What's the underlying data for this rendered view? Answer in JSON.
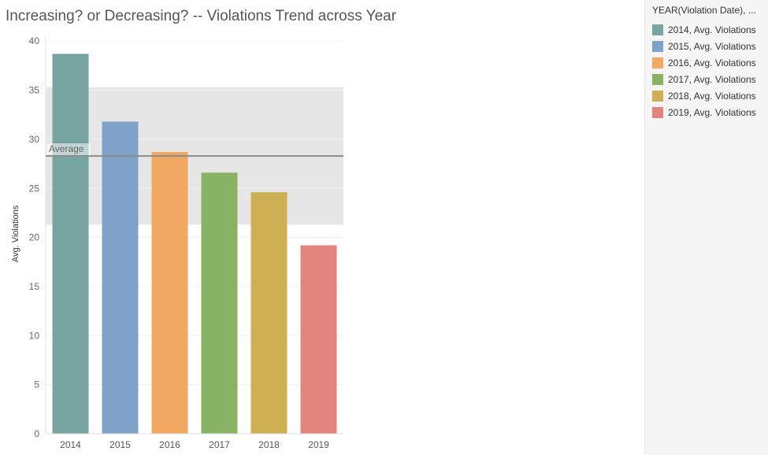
{
  "chart_data": {
    "type": "bar",
    "title": "Increasing? or Decreasing? -- Violations Trend across Year",
    "xlabel": "",
    "ylabel": "Avg. Violations",
    "categories": [
      "2014",
      "2015",
      "2016",
      "2017",
      "2018",
      "2019"
    ],
    "values": [
      38.7,
      31.8,
      28.7,
      26.6,
      24.6,
      19.2
    ],
    "colors": [
      "#76a5a1",
      "#7ea2c8",
      "#f0a863",
      "#88b365",
      "#cfaf54",
      "#e2837e"
    ],
    "ylim": [
      0,
      40.5
    ],
    "yticks": [
      0,
      5,
      10,
      15,
      20,
      25,
      30,
      35,
      40
    ],
    "reference_line": {
      "label": "Average",
      "value": 28.3,
      "color": "#8c8c8c"
    },
    "reference_band": {
      "from": 21.3,
      "to": 35.3,
      "color": "#e6e6e6"
    },
    "grid": true,
    "legend": {
      "title": "YEAR(Violation Date), ...",
      "position": "right",
      "items": [
        "2014, Avg. Violations",
        "2015, Avg. Violations",
        "2016, Avg. Violations",
        "2017, Avg. Violations",
        "2018, Avg. Violations",
        "2019, Avg. Violations"
      ]
    }
  }
}
